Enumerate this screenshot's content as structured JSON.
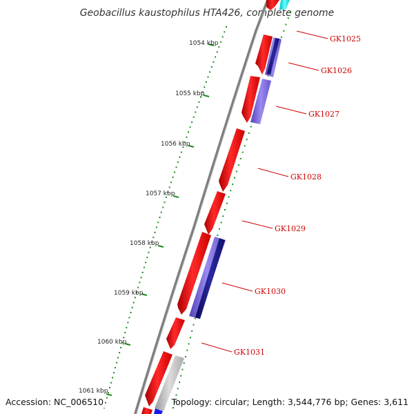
{
  "title": "Geobacillus kaustophilus HTA426, complete genome",
  "footer": {
    "accession": "Accession: NC_006510",
    "topology": "Topology: circular; Length: 3,544,776 bp; Genes: 3,611"
  },
  "colors": {
    "forward_cds": "#ee0000",
    "reverse_cds": "#8877dd",
    "reverse_cds_alt": "#1a1a88",
    "other_feature": "#bbbbbb",
    "backbone": "#888888",
    "ticks": "#1a8a1a",
    "label": "#cc0000",
    "rna": "#00dddd"
  },
  "ticks": [
    {
      "label": "1054 kbp"
    },
    {
      "label": "1055 kbp"
    },
    {
      "label": "1056 kbp"
    },
    {
      "label": "1057 kbp"
    },
    {
      "label": "1058 kbp"
    },
    {
      "label": "1059 kbp"
    },
    {
      "label": "1060 kbp"
    },
    {
      "label": "1061 kbp"
    }
  ],
  "gene_labels": [
    "GK1025",
    "GK1026",
    "GK1027",
    "GK1028",
    "GK1029",
    "GK1030",
    "GK1031"
  ]
}
